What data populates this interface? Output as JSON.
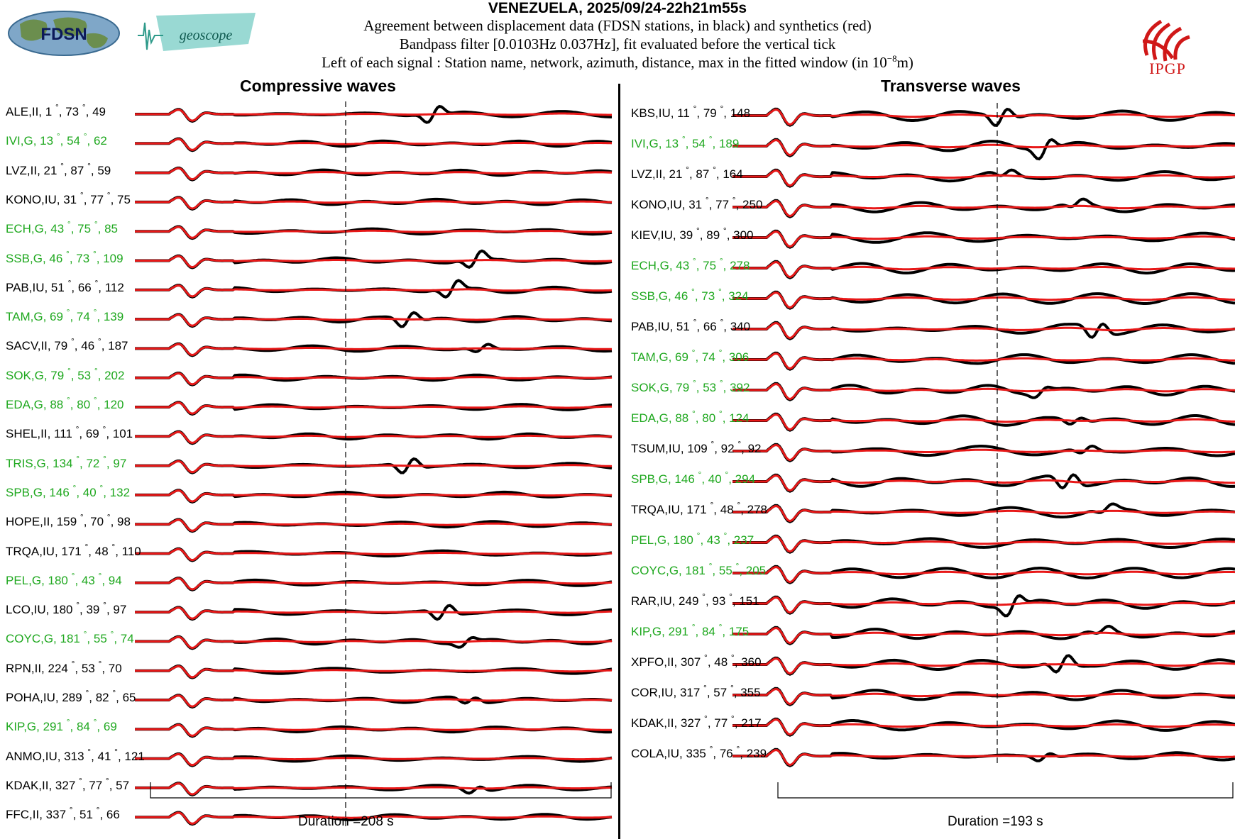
{
  "header": {
    "title": "VENEZUELA, 2025/09/24-22h21m55s",
    "line1": "Agreement between displacement data (FDSN stations, in black) and synthetics (red)",
    "line2": "Bandpass filter [0.0103Hz 0.037Hz], fit evaluated before the vertical tick",
    "line3_prefix": "Left of each signal : Station name, network, azimuth, distance, max in the fitted window (in 10",
    "line3_exp": "−8",
    "line3_suffix": "m)"
  },
  "logos": {
    "fdsn": "FDSN",
    "geoscope": "geoscope",
    "ipgp": "IPGP"
  },
  "colors": {
    "data": "#000000",
    "synthetic": "#e81818",
    "geoscope_network": "#1fa81f",
    "other_network": "#000000"
  },
  "chart_data": [
    {
      "type": "line",
      "title": "Compressive waves",
      "duration_label": "Duration =208 s",
      "series": [
        {
          "station": "ALE",
          "network": "II",
          "azimuth": 1,
          "distance": 73,
          "max": 49
        },
        {
          "station": "IVI",
          "network": "G",
          "azimuth": 13,
          "distance": 54,
          "max": 62
        },
        {
          "station": "LVZ",
          "network": "II",
          "azimuth": 21,
          "distance": 87,
          "max": 59
        },
        {
          "station": "KONO",
          "network": "IU",
          "azimuth": 31,
          "distance": 77,
          "max": 75
        },
        {
          "station": "ECH",
          "network": "G",
          "azimuth": 43,
          "distance": 75,
          "max": 85
        },
        {
          "station": "SSB",
          "network": "G",
          "azimuth": 46,
          "distance": 73,
          "max": 109
        },
        {
          "station": "PAB",
          "network": "IU",
          "azimuth": 51,
          "distance": 66,
          "max": 112
        },
        {
          "station": "TAM",
          "network": "G",
          "azimuth": 69,
          "distance": 74,
          "max": 139
        },
        {
          "station": "SACV",
          "network": "II",
          "azimuth": 79,
          "distance": 46,
          "max": 187
        },
        {
          "station": "SOK",
          "network": "G",
          "azimuth": 79,
          "distance": 53,
          "max": 202
        },
        {
          "station": "EDA",
          "network": "G",
          "azimuth": 88,
          "distance": 80,
          "max": 120
        },
        {
          "station": "SHEL",
          "network": "II",
          "azimuth": 111,
          "distance": 69,
          "max": 101
        },
        {
          "station": "TRIS",
          "network": "G",
          "azimuth": 134,
          "distance": 72,
          "max": 97
        },
        {
          "station": "SPB",
          "network": "G",
          "azimuth": 146,
          "distance": 40,
          "max": 132
        },
        {
          "station": "HOPE",
          "network": "II",
          "azimuth": 159,
          "distance": 70,
          "max": 98
        },
        {
          "station": "TRQA",
          "network": "IU",
          "azimuth": 171,
          "distance": 48,
          "max": 110
        },
        {
          "station": "PEL",
          "network": "G",
          "azimuth": 180,
          "distance": 43,
          "max": 94
        },
        {
          "station": "LCO",
          "network": "IU",
          "azimuth": 180,
          "distance": 39,
          "max": 97
        },
        {
          "station": "COYC",
          "network": "G",
          "azimuth": 181,
          "distance": 55,
          "max": 74
        },
        {
          "station": "RPN",
          "network": "II",
          "azimuth": 224,
          "distance": 53,
          "max": 70
        },
        {
          "station": "POHA",
          "network": "IU",
          "azimuth": 289,
          "distance": 82,
          "max": 65
        },
        {
          "station": "KIP",
          "network": "G",
          "azimuth": 291,
          "distance": 84,
          "max": 69
        },
        {
          "station": "ANMO",
          "network": "IU",
          "azimuth": 313,
          "distance": 41,
          "max": 121
        },
        {
          "station": "KDAK",
          "network": "II",
          "azimuth": 327,
          "distance": 77,
          "max": 57
        },
        {
          "station": "FFC",
          "network": "II",
          "azimuth": 337,
          "distance": 51,
          "max": 66
        }
      ]
    },
    {
      "type": "line",
      "title": "Transverse waves",
      "duration_label": "Duration =193 s",
      "series": [
        {
          "station": "KBS",
          "network": "IU",
          "azimuth": 11,
          "distance": 79,
          "max": 148
        },
        {
          "station": "IVI",
          "network": "G",
          "azimuth": 13,
          "distance": 54,
          "max": 189
        },
        {
          "station": "LVZ",
          "network": "II",
          "azimuth": 21,
          "distance": 87,
          "max": 164
        },
        {
          "station": "KONO",
          "network": "IU",
          "azimuth": 31,
          "distance": 77,
          "max": 250
        },
        {
          "station": "KIEV",
          "network": "IU",
          "azimuth": 39,
          "distance": 89,
          "max": 300
        },
        {
          "station": "ECH",
          "network": "G",
          "azimuth": 43,
          "distance": 75,
          "max": 278
        },
        {
          "station": "SSB",
          "network": "G",
          "azimuth": 46,
          "distance": 73,
          "max": 324
        },
        {
          "station": "PAB",
          "network": "IU",
          "azimuth": 51,
          "distance": 66,
          "max": 340
        },
        {
          "station": "TAM",
          "network": "G",
          "azimuth": 69,
          "distance": 74,
          "max": 306
        },
        {
          "station": "SOK",
          "network": "G",
          "azimuth": 79,
          "distance": 53,
          "max": 392
        },
        {
          "station": "EDA",
          "network": "G",
          "azimuth": 88,
          "distance": 80,
          "max": 124
        },
        {
          "station": "TSUM",
          "network": "IU",
          "azimuth": 109,
          "distance": 92,
          "max": 92
        },
        {
          "station": "SPB",
          "network": "G",
          "azimuth": 146,
          "distance": 40,
          "max": 294
        },
        {
          "station": "TRQA",
          "network": "IU",
          "azimuth": 171,
          "distance": 48,
          "max": 278
        },
        {
          "station": "PEL",
          "network": "G",
          "azimuth": 180,
          "distance": 43,
          "max": 237
        },
        {
          "station": "COYC",
          "network": "G",
          "azimuth": 181,
          "distance": 55,
          "max": 205
        },
        {
          "station": "RAR",
          "network": "IU",
          "azimuth": 249,
          "distance": 93,
          "max": 151
        },
        {
          "station": "KIP",
          "network": "G",
          "azimuth": 291,
          "distance": 84,
          "max": 175
        },
        {
          "station": "XPFO",
          "network": "II",
          "azimuth": 307,
          "distance": 48,
          "max": 360
        },
        {
          "station": "COR",
          "network": "IU",
          "azimuth": 317,
          "distance": 57,
          "max": 355
        },
        {
          "station": "KDAK",
          "network": "II",
          "azimuth": 327,
          "distance": 77,
          "max": 217
        },
        {
          "station": "COLA",
          "network": "IU",
          "azimuth": 335,
          "distance": 76,
          "max": 239
        }
      ]
    }
  ]
}
